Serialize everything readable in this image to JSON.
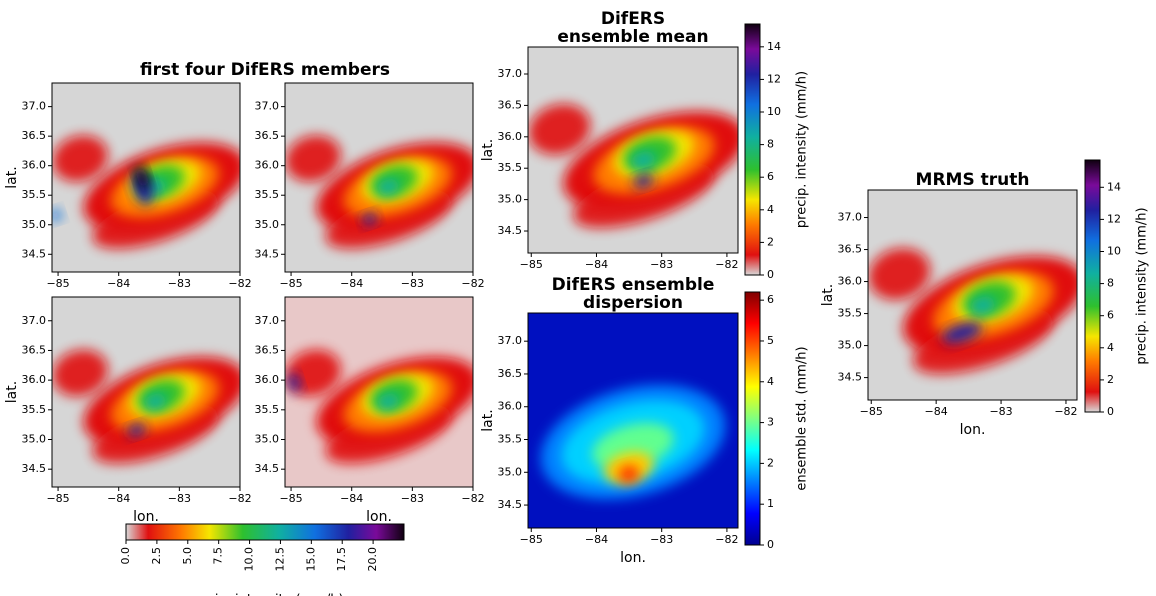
{
  "suptitle": "first four DifERS members",
  "chart_data": [
    {
      "type": "heatmap",
      "ylabel": "lat.",
      "cmap": "precip",
      "xlim": [
        -85.1,
        -82
      ],
      "ylim": [
        34.2,
        37.4
      ],
      "xticks": [
        {
          "value": -85,
          "label": "−85"
        },
        {
          "value": -84,
          "label": "−84"
        },
        {
          "value": -83,
          "label": "−83"
        },
        {
          "value": -82,
          "label": "−82"
        }
      ],
      "yticks": [
        34.5,
        {
          "value": 35,
          "label": "35.0"
        },
        35.5,
        {
          "value": 36,
          "label": "36.0"
        },
        36.5,
        {
          "value": 37,
          "label": "37.0"
        }
      ]
    },
    {
      "type": "heatmap",
      "cmap": "precip",
      "xlim": [
        -85.1,
        -82
      ],
      "ylim": [
        34.2,
        37.4
      ],
      "xticks": [
        {
          "value": -85,
          "label": "−85"
        },
        {
          "value": -84,
          "label": "−84"
        },
        {
          "value": -83,
          "label": "−83"
        },
        {
          "value": -82,
          "label": "−82"
        }
      ],
      "yticks": [
        34.5,
        {
          "value": 35,
          "label": "35.0"
        },
        35.5,
        {
          "value": 36,
          "label": "36.0"
        },
        36.5,
        {
          "value": 37,
          "label": "37.0"
        }
      ]
    },
    {
      "type": "heatmap",
      "ylabel": "lat.",
      "xlabel": "lon.",
      "cmap": "precip",
      "xlim": [
        -85.1,
        -82
      ],
      "ylim": [
        34.2,
        37.4
      ],
      "xticks": [
        {
          "value": -85,
          "label": "−85"
        },
        {
          "value": -84,
          "label": "−84"
        },
        {
          "value": -83,
          "label": "−83"
        },
        {
          "value": -82,
          "label": "−82"
        }
      ],
      "yticks": [
        34.5,
        {
          "value": 35,
          "label": "35.0"
        },
        35.5,
        {
          "value": 36,
          "label": "36.0"
        },
        36.5,
        {
          "value": 37,
          "label": "37.0"
        }
      ]
    },
    {
      "type": "heatmap",
      "xlabel": "lon.",
      "cmap": "precip",
      "xlim": [
        -85.1,
        -82
      ],
      "ylim": [
        34.2,
        37.4
      ],
      "xticks": [
        {
          "value": -85,
          "label": "−85"
        },
        {
          "value": -84,
          "label": "−84"
        },
        {
          "value": -83,
          "label": "−83"
        },
        {
          "value": -82,
          "label": "−82"
        }
      ],
      "yticks": [
        34.5,
        {
          "value": 35,
          "label": "35.0"
        },
        35.5,
        {
          "value": 36,
          "label": "36.0"
        },
        36.5,
        {
          "value": 37,
          "label": "37.0"
        }
      ]
    },
    {
      "type": "colorbar",
      "orientation": "horizontal",
      "cmap": "precip",
      "label": "precip. intensity (mm/h)",
      "xlim": [
        0,
        22.5
      ],
      "xticks": [
        {
          "value": 0,
          "label": "0.0"
        },
        2.5,
        {
          "value": 5,
          "label": "5.0"
        },
        7.5,
        {
          "value": 10,
          "label": "10.0"
        },
        12.5,
        {
          "value": 15,
          "label": "15.0"
        },
        17.5,
        {
          "value": 20,
          "label": "20.0"
        }
      ]
    },
    {
      "type": "heatmap",
      "title": "DifERS\nensemble mean",
      "ylabel": "lat.",
      "cmap": "precip",
      "xlim": [
        -85.05,
        -81.83
      ],
      "ylim": [
        34.15,
        37.43
      ],
      "xticks": [
        {
          "value": -85,
          "label": "−85"
        },
        {
          "value": -84,
          "label": "−84"
        },
        {
          "value": -83,
          "label": "−83"
        },
        {
          "value": -82,
          "label": "−82"
        }
      ],
      "yticks": [
        34.5,
        {
          "value": 35,
          "label": "35.0"
        },
        35.5,
        {
          "value": 36,
          "label": "36.0"
        },
        36.5,
        {
          "value": 37,
          "label": "37.0"
        }
      ]
    },
    {
      "type": "colorbar",
      "orientation": "vertical",
      "cmap": "precip",
      "label": "precip. intensity (mm/h)",
      "ylim": [
        0,
        15.4
      ],
      "yticks": [
        0,
        2,
        4,
        6,
        8,
        10,
        12,
        14
      ]
    },
    {
      "type": "heatmap",
      "title": "DifERS ensemble\ndispersion",
      "ylabel": "lat.",
      "xlabel": "lon.",
      "cmap": "jet",
      "xlim": [
        -85.05,
        -81.83
      ],
      "ylim": [
        34.15,
        37.43
      ],
      "xticks": [
        {
          "value": -85,
          "label": "−85"
        },
        {
          "value": -84,
          "label": "−84"
        },
        {
          "value": -83,
          "label": "−83"
        },
        {
          "value": -82,
          "label": "−82"
        }
      ],
      "yticks": [
        34.5,
        {
          "value": 35,
          "label": "35.0"
        },
        35.5,
        {
          "value": 36,
          "label": "36.0"
        },
        36.5,
        {
          "value": 37,
          "label": "37.0"
        }
      ]
    },
    {
      "type": "colorbar",
      "orientation": "vertical",
      "cmap": "jet",
      "label": "ensemble std. (mm/h)",
      "ylim": [
        0,
        6.2
      ],
      "yticks": [
        0,
        1,
        2,
        3,
        4,
        5,
        6
      ]
    },
    {
      "type": "heatmap",
      "title": "MRMS truth",
      "ylabel": "lat.",
      "xlabel": "lon.",
      "cmap": "precip",
      "xlim": [
        -85.05,
        -81.83
      ],
      "ylim": [
        34.15,
        37.43
      ],
      "xticks": [
        {
          "value": -85,
          "label": "−85"
        },
        {
          "value": -84,
          "label": "−84"
        },
        {
          "value": -83,
          "label": "−83"
        },
        {
          "value": -82,
          "label": "−82"
        }
      ],
      "yticks": [
        34.5,
        {
          "value": 35,
          "label": "35.0"
        },
        35.5,
        {
          "value": 36,
          "label": "36.0"
        },
        36.5,
        {
          "value": 37,
          "label": "37.0"
        }
      ]
    },
    {
      "type": "colorbar",
      "orientation": "vertical",
      "cmap": "precip",
      "label": "precip. intensity (mm/h)",
      "ylim": [
        0,
        15.7
      ],
      "yticks": [
        0,
        2,
        4,
        6,
        8,
        10,
        12,
        14
      ]
    }
  ]
}
